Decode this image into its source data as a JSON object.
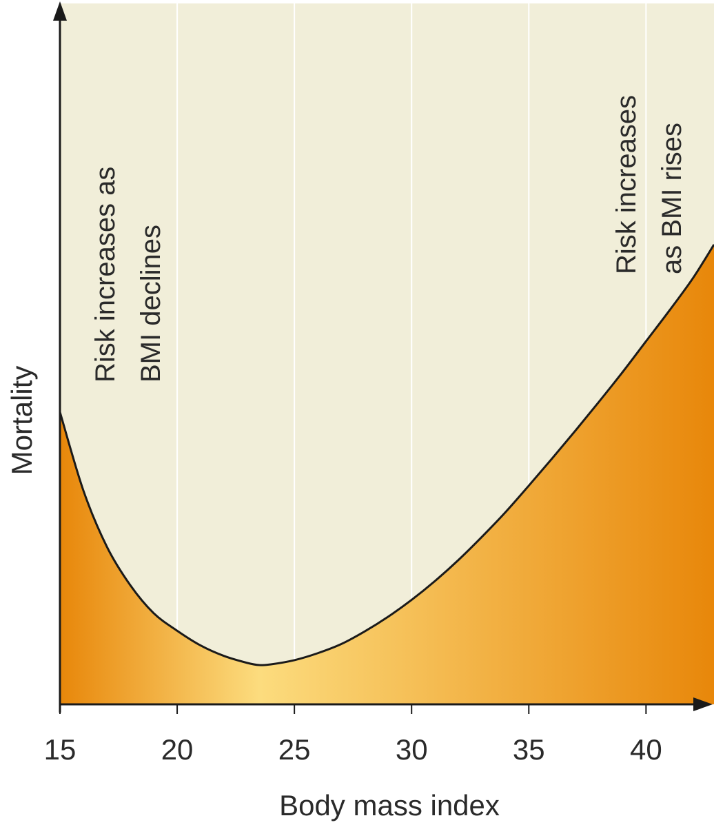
{
  "chart_data": {
    "type": "area",
    "title": "",
    "xlabel": "Body mass index",
    "ylabel": "Mortality",
    "xlim": [
      15,
      42.9
    ],
    "ylim": [
      0,
      100
    ],
    "xticks": [
      15,
      20,
      25,
      30,
      35,
      40
    ],
    "xtick_labels": [
      "15",
      "20",
      "25",
      "30",
      "35",
      "40"
    ],
    "grid": "vertical lines at x ticks",
    "series": [
      {
        "x": [
          15,
          16,
          17,
          18,
          19,
          20,
          21,
          22,
          23,
          23.5,
          24,
          25,
          26,
          27,
          28,
          29,
          30,
          31,
          32,
          33,
          34,
          35,
          36,
          37,
          38,
          39,
          40,
          41,
          42,
          42.9
        ],
        "y": [
          41.7,
          30.5,
          22.5,
          17.0,
          13.0,
          10.5,
          8.4,
          6.9,
          5.9,
          5.6,
          5.7,
          6.3,
          7.3,
          8.6,
          10.4,
          12.5,
          14.9,
          17.6,
          20.6,
          23.9,
          27.4,
          31.2,
          35.1,
          39.1,
          43.2,
          47.4,
          51.8,
          56.2,
          60.8,
          65.6
        ]
      }
    ],
    "annotations": [
      {
        "lines": [
          "Risk increases as",
          "BMI declines"
        ]
      },
      {
        "lines": [
          "Risk increases",
          "as BMI rises"
        ]
      }
    ],
    "colors": {
      "background": "#f1eed9",
      "fill_edge": "#e8870a",
      "fill_center": "#fcdc7e",
      "curve": "#1a1a1a",
      "grid": "#ffffff"
    }
  }
}
